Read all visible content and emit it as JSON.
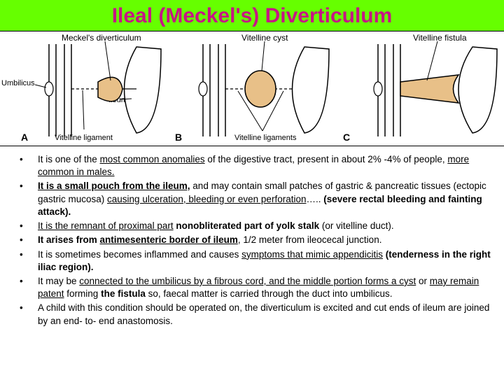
{
  "title": {
    "text": "Ileal (Meckel's) Diverticulum",
    "color": "#c71585",
    "background": "#66ff00",
    "fontsize": 30
  },
  "diagram": {
    "panelA": {
      "top_label": "Meckel's diverticulum",
      "left_label": "Umbilicus",
      "mid_label": "Ileum",
      "bottom_label": "Vitelline ligament",
      "letter": "A"
    },
    "panelB": {
      "top_label": "Vitelline cyst",
      "bottom_label": "Vitelline ligaments",
      "letter": "B"
    },
    "panelC": {
      "top_label": "Vitelline fistula",
      "letter": "C"
    },
    "colors": {
      "pouch_fill": "#e8c088",
      "tube_stroke": "#000000",
      "background": "#ffffff"
    }
  },
  "bullets": [
    {
      "segments": [
        {
          "t": "It is one of the ",
          "u": false,
          "b": false
        },
        {
          "t": "most common anomalies",
          "u": true,
          "b": false
        },
        {
          "t": " of the digestive tract, present in about 2% -4% of people, ",
          "u": false,
          "b": false
        },
        {
          "t": "more common in males.",
          "u": true,
          "b": false
        }
      ]
    },
    {
      "segments": [
        {
          "t": "It is a small pouch from the ileum,",
          "u": true,
          "b": true
        },
        {
          "t": " and may contain small patches of gastric & pancreatic tissues (ectopic gastric mucosa) ",
          "u": false,
          "b": false
        },
        {
          "t": "causing ulceration, bleeding or even perforation",
          "u": true,
          "b": false
        },
        {
          "t": "….. ",
          "u": false,
          "b": false
        },
        {
          "t": "(severe rectal bleeding and fainting attack).",
          "u": false,
          "b": true
        }
      ]
    },
    {
      "segments": [
        {
          "t": "It is the remnant of proximal part",
          "u": true,
          "b": false
        },
        {
          "t": "  ",
          "u": false,
          "b": false
        },
        {
          "t": "nonobliterated part of yolk stalk",
          "u": false,
          "b": true
        },
        {
          "t": " (or vitelline duct).",
          "u": false,
          "b": false
        }
      ]
    },
    {
      "segments": [
        {
          "t": "It arises from ",
          "u": false,
          "b": true
        },
        {
          "t": "antimesenteric border of ileum",
          "u": true,
          "b": true
        },
        {
          "t": ", 1/2 meter from ileocecal junction.",
          "u": false,
          "b": false
        }
      ]
    },
    {
      "segments": [
        {
          "t": "It is sometimes becomes inflammed and causes ",
          "u": false,
          "b": false
        },
        {
          "t": "symptoms that mimic appendicitis",
          "u": true,
          "b": false
        },
        {
          "t": " ",
          "u": false,
          "b": false
        },
        {
          "t": "(tenderness in the right iliac region).",
          "u": false,
          "b": true
        }
      ]
    },
    {
      "segments": [
        {
          "t": "It may be ",
          "u": false,
          "b": false
        },
        {
          "t": "connected to the umbilicus by a  fibrous cord, and the middle portion forms a cyst",
          "u": true,
          "b": false
        },
        {
          "t": " or ",
          "u": false,
          "b": false
        },
        {
          "t": "may remain patent",
          "u": true,
          "b": false
        },
        {
          "t": " forming ",
          "u": false,
          "b": false
        },
        {
          "t": "the fistula",
          "u": false,
          "b": true
        },
        {
          "t": " so, faecal matter is carried through the duct into umbilicus.",
          "u": false,
          "b": false
        }
      ]
    },
    {
      "segments": [
        {
          "t": "A child with this condition should be operated on, the diverticulum is excited and cut ends of ileum are joined by an end- to- end anastomosis.",
          "u": false,
          "b": false
        }
      ]
    }
  ]
}
